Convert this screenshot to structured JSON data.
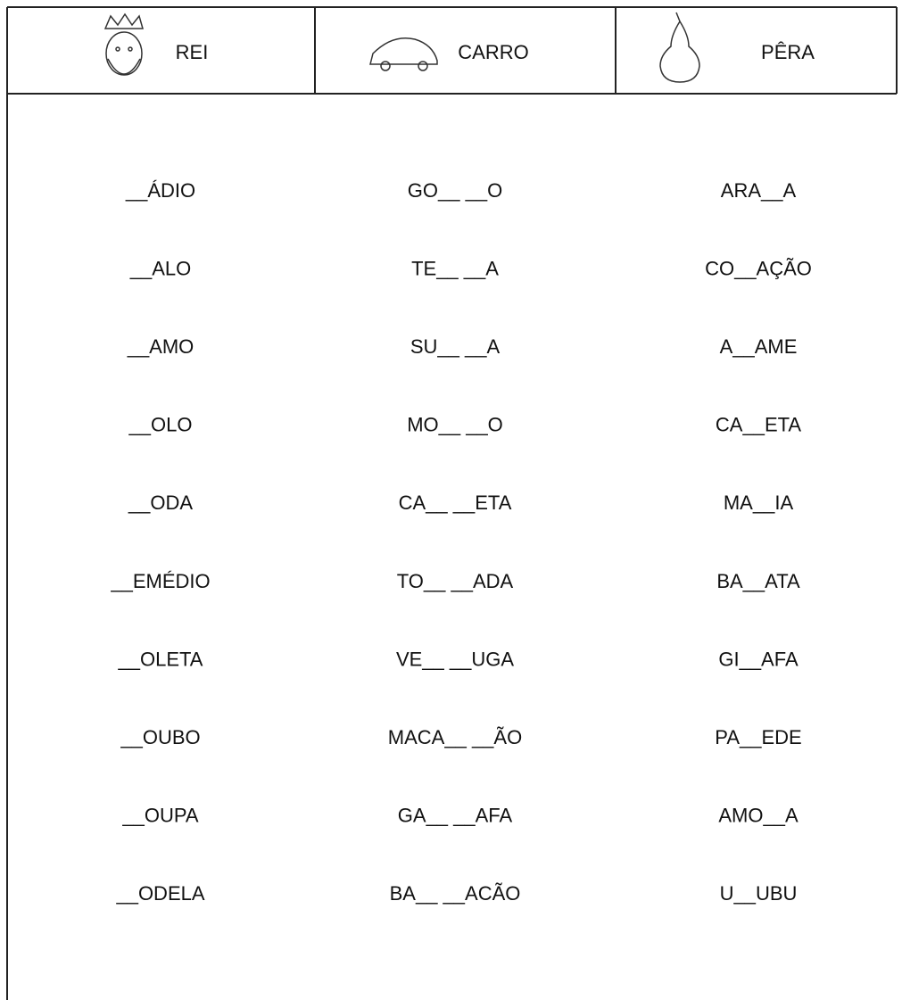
{
  "header": {
    "columns": [
      "REI",
      "CARRO",
      "PÊRA"
    ]
  },
  "columns": [
    [
      "__ÁDIO",
      "__ALO",
      "__AMO",
      "__OLO",
      "__ODA",
      "__EMÉDIO",
      "__OLETA",
      "__OUBO",
      "__OUPA",
      "__ODELA"
    ],
    [
      "GO__ __O",
      "TE__ __A",
      "SU__ __A",
      "MO__ __O",
      "CA__ __ETA",
      "TO__ __ADA",
      "VE__ __UGA",
      "MACA__ __ÃO",
      "GA__ __AFA",
      "BA__ __ACÃO"
    ],
    [
      "ARA__A",
      "CO__AÇÃO",
      "A__AME",
      "CA__ETA",
      "MA__IA",
      "BA__ATA",
      "GI__AFA",
      "PA__EDE",
      "AMO__A",
      "U__UBU"
    ]
  ]
}
